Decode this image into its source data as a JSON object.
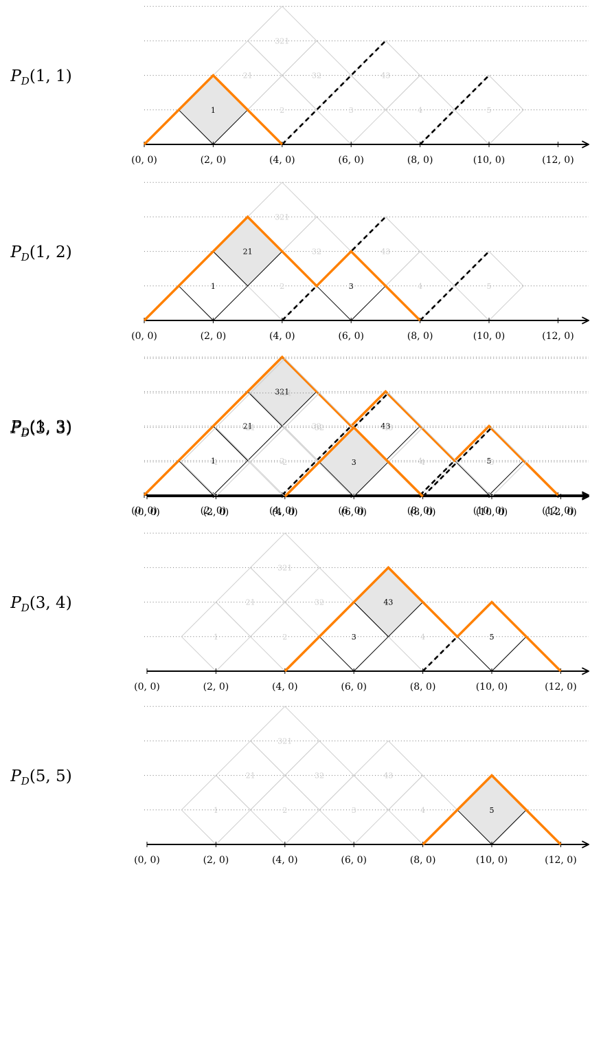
{
  "diagram": {
    "x_tick_labels": [
      "(0, 0)",
      "(2, 0)",
      "(4, 0)",
      "(6, 0)",
      "(8, 0)",
      "(10, 0)",
      "(12, 0)"
    ],
    "x_tick_values": [
      0,
      2,
      4,
      6,
      8,
      10,
      12
    ],
    "grid_levels": [
      1,
      2,
      3,
      4
    ],
    "cells": [
      {
        "label": "1",
        "x": 2,
        "y": 1
      },
      {
        "label": "2",
        "x": 4,
        "y": 1
      },
      {
        "label": "3",
        "x": 6,
        "y": 1
      },
      {
        "label": "4",
        "x": 8,
        "y": 1
      },
      {
        "label": "5",
        "x": 10,
        "y": 1
      },
      {
        "label": "21",
        "x": 3,
        "y": 2
      },
      {
        "label": "32",
        "x": 5,
        "y": 2
      },
      {
        "label": "43",
        "x": 7,
        "y": 2
      },
      {
        "label": "321",
        "x": 4,
        "y": 3
      }
    ],
    "colors": {
      "path": "#ff8000",
      "shaded": "#e6e6e6",
      "faint": "#cfcfcf",
      "active": "#000000"
    },
    "panels": [
      {
        "label_main": "P",
        "label_sub": "D",
        "label_args": "(1, 1)",
        "path": [
          [
            0,
            0
          ],
          [
            2,
            2
          ],
          [
            4,
            0
          ]
        ],
        "active": [
          "1"
        ],
        "shaded": [
          "1"
        ],
        "dashed": [
          [
            [
              4,
              0
            ],
            [
              7,
              3
            ]
          ],
          [
            [
              8,
              0
            ],
            [
              10,
              2
            ]
          ]
        ]
      },
      {
        "label_main": "P",
        "label_sub": "D",
        "label_args": "(1, 2)",
        "path": [
          [
            0,
            0
          ],
          [
            3,
            3
          ],
          [
            5,
            1
          ],
          [
            6,
            2
          ],
          [
            8,
            0
          ]
        ],
        "active": [
          "1",
          "21",
          "3"
        ],
        "shaded": [
          "21"
        ],
        "dashed": [
          [
            [
              4,
              0
            ],
            [
              7,
              3
            ]
          ],
          [
            [
              8,
              0
            ],
            [
              10,
              2
            ]
          ]
        ]
      },
      {
        "label_main": "P",
        "label_sub": "D",
        "label_args": "(1, 3)",
        "path": [
          [
            0,
            0
          ],
          [
            4,
            4
          ],
          [
            6,
            2
          ],
          [
            7,
            3
          ],
          [
            9,
            1
          ],
          [
            10,
            2
          ],
          [
            12,
            0
          ]
        ],
        "active": [
          "1",
          "21",
          "321",
          "43",
          "5"
        ],
        "shaded": [
          "321"
        ],
        "dashed": [
          [
            [
              4,
              0
            ],
            [
              6,
              2
            ]
          ],
          [
            [
              8,
              0
            ],
            [
              9,
              1
            ]
          ]
        ]
      },
      {
        "label_main": "P",
        "label_sub": "D",
        "label_args": "(3, 3)",
        "path": [
          [
            4,
            0
          ],
          [
            6,
            2
          ],
          [
            8,
            0
          ]
        ],
        "active": [
          "3"
        ],
        "shaded": [
          "3"
        ],
        "dashed": [
          [
            [
              6,
              2
            ],
            [
              7,
              3
            ]
          ],
          [
            [
              8,
              0
            ],
            [
              10,
              2
            ]
          ]
        ]
      },
      {
        "label_main": "P",
        "label_sub": "D",
        "label_args": "(3, 4)",
        "path": [
          [
            4,
            0
          ],
          [
            7,
            3
          ],
          [
            9,
            1
          ],
          [
            10,
            2
          ],
          [
            12,
            0
          ]
        ],
        "active": [
          "3",
          "43",
          "5"
        ],
        "shaded": [
          "43"
        ],
        "dashed": [
          [
            [
              8,
              0
            ],
            [
              9,
              1
            ]
          ]
        ]
      },
      {
        "label_main": "P",
        "label_sub": "D",
        "label_args": "(5, 5)",
        "path": [
          [
            8,
            0
          ],
          [
            10,
            2
          ],
          [
            12,
            0
          ]
        ],
        "active": [
          "5"
        ],
        "shaded": [
          "5"
        ],
        "dashed": []
      }
    ]
  }
}
